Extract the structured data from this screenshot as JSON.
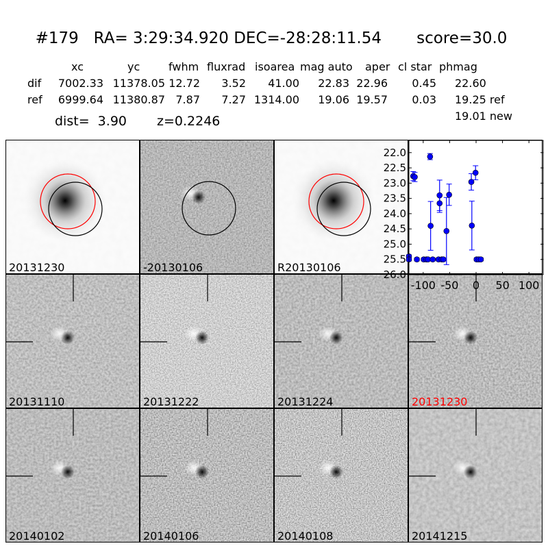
{
  "header": {
    "title": "#179   RA= 3:29:34.920 DEC=-28:28:11.54       score=30.0",
    "columns": [
      "xc",
      "yc",
      "fwhm",
      "fluxrad",
      "isoarea",
      "mag auto",
      "aper",
      "cl star",
      "phmag"
    ],
    "rows": [
      {
        "label": "dif",
        "values": [
          "7002.33",
          "11378.05",
          "12.72",
          "3.52",
          "41.00",
          "22.83",
          "22.96",
          "0.45",
          "22.60"
        ]
      },
      {
        "label": "ref",
        "values": [
          "6999.64",
          "11380.87",
          "7.87",
          "7.27",
          "1314.00",
          "19.06",
          "19.57",
          "0.03",
          "19.25 ref"
        ]
      }
    ],
    "new_phmag": "19.01 new",
    "dist": "dist=  3.90",
    "z": "z=0.2246"
  },
  "tiles": [
    {
      "label": "20131230",
      "label_color": "#000000"
    },
    {
      "label": "-20130106",
      "label_color": "#000000"
    },
    {
      "label": "R20130106",
      "label_color": "#000000"
    },
    null,
    {
      "label": "20131110",
      "label_color": "#000000"
    },
    {
      "label": "20131222",
      "label_color": "#000000"
    },
    {
      "label": "20131224",
      "label_color": "#000000"
    },
    {
      "label": "20131230",
      "label_color": "#ff0000"
    },
    {
      "label": "20140102",
      "label_color": "#000000"
    },
    {
      "label": "20140106",
      "label_color": "#000000"
    },
    {
      "label": "20140108",
      "label_color": "#000000"
    },
    {
      "label": "20141215",
      "label_color": "#000000"
    }
  ],
  "chart_data": {
    "type": "scatter",
    "title": "",
    "xlabel": "",
    "ylabel": "",
    "xlim": [
      -127,
      127
    ],
    "ylim": [
      26.0,
      21.6
    ],
    "y_inverted": true,
    "xticks": [
      "-100",
      "-50",
      "0",
      "50",
      "100"
    ],
    "xtick_values": [
      -100,
      -50,
      0,
      50,
      100
    ],
    "yticks": [
      "22.0",
      "22.5",
      "23.0",
      "23.5",
      "24.0",
      "24.5",
      "25.0",
      "25.5",
      "26.0"
    ],
    "ytick_values": [
      22.0,
      22.5,
      23.0,
      23.5,
      24.0,
      24.5,
      25.0,
      25.5,
      26.0
    ],
    "color": "#0000ff",
    "points": [
      {
        "x": -127,
        "y": 25.4,
        "err": 0.05
      },
      {
        "x": -127,
        "y": 25.5,
        "err": 0.05
      },
      {
        "x": -119,
        "y": 22.77,
        "err": 0.15
      },
      {
        "x": -116,
        "y": 22.8,
        "err": 0.15
      },
      {
        "x": -112,
        "y": 25.5,
        "err": 0.05
      },
      {
        "x": -99,
        "y": 25.5,
        "err": 0.05
      },
      {
        "x": -94,
        "y": 25.5,
        "err": 0.05
      },
      {
        "x": -91,
        "y": 25.5,
        "err": 0.05
      },
      {
        "x": -87,
        "y": 22.13,
        "err": 0.1
      },
      {
        "x": -86,
        "y": 24.4,
        "err": 0.8
      },
      {
        "x": -82,
        "y": 25.5,
        "err": 0.05
      },
      {
        "x": -71,
        "y": 25.5,
        "err": 0.05
      },
      {
        "x": -69,
        "y": 23.4,
        "err": 0.5
      },
      {
        "x": -69,
        "y": 23.66,
        "err": 0.3
      },
      {
        "x": -65,
        "y": 25.5,
        "err": 0.05
      },
      {
        "x": -62,
        "y": 25.5,
        "err": 0.05
      },
      {
        "x": -56,
        "y": 24.57,
        "err": 1.1
      },
      {
        "x": -51,
        "y": 23.38,
        "err": 0.35
      },
      {
        "x": -9,
        "y": 22.96,
        "err": 0.27
      },
      {
        "x": -8,
        "y": 24.39,
        "err": 0.8
      },
      {
        "x": -1,
        "y": 22.66,
        "err": 0.23
      },
      {
        "x": 1,
        "y": 25.5,
        "err": 0.05
      },
      {
        "x": 5,
        "y": 25.5,
        "err": 0.05
      },
      {
        "x": 9,
        "y": 25.5,
        "err": 0.05
      }
    ]
  }
}
